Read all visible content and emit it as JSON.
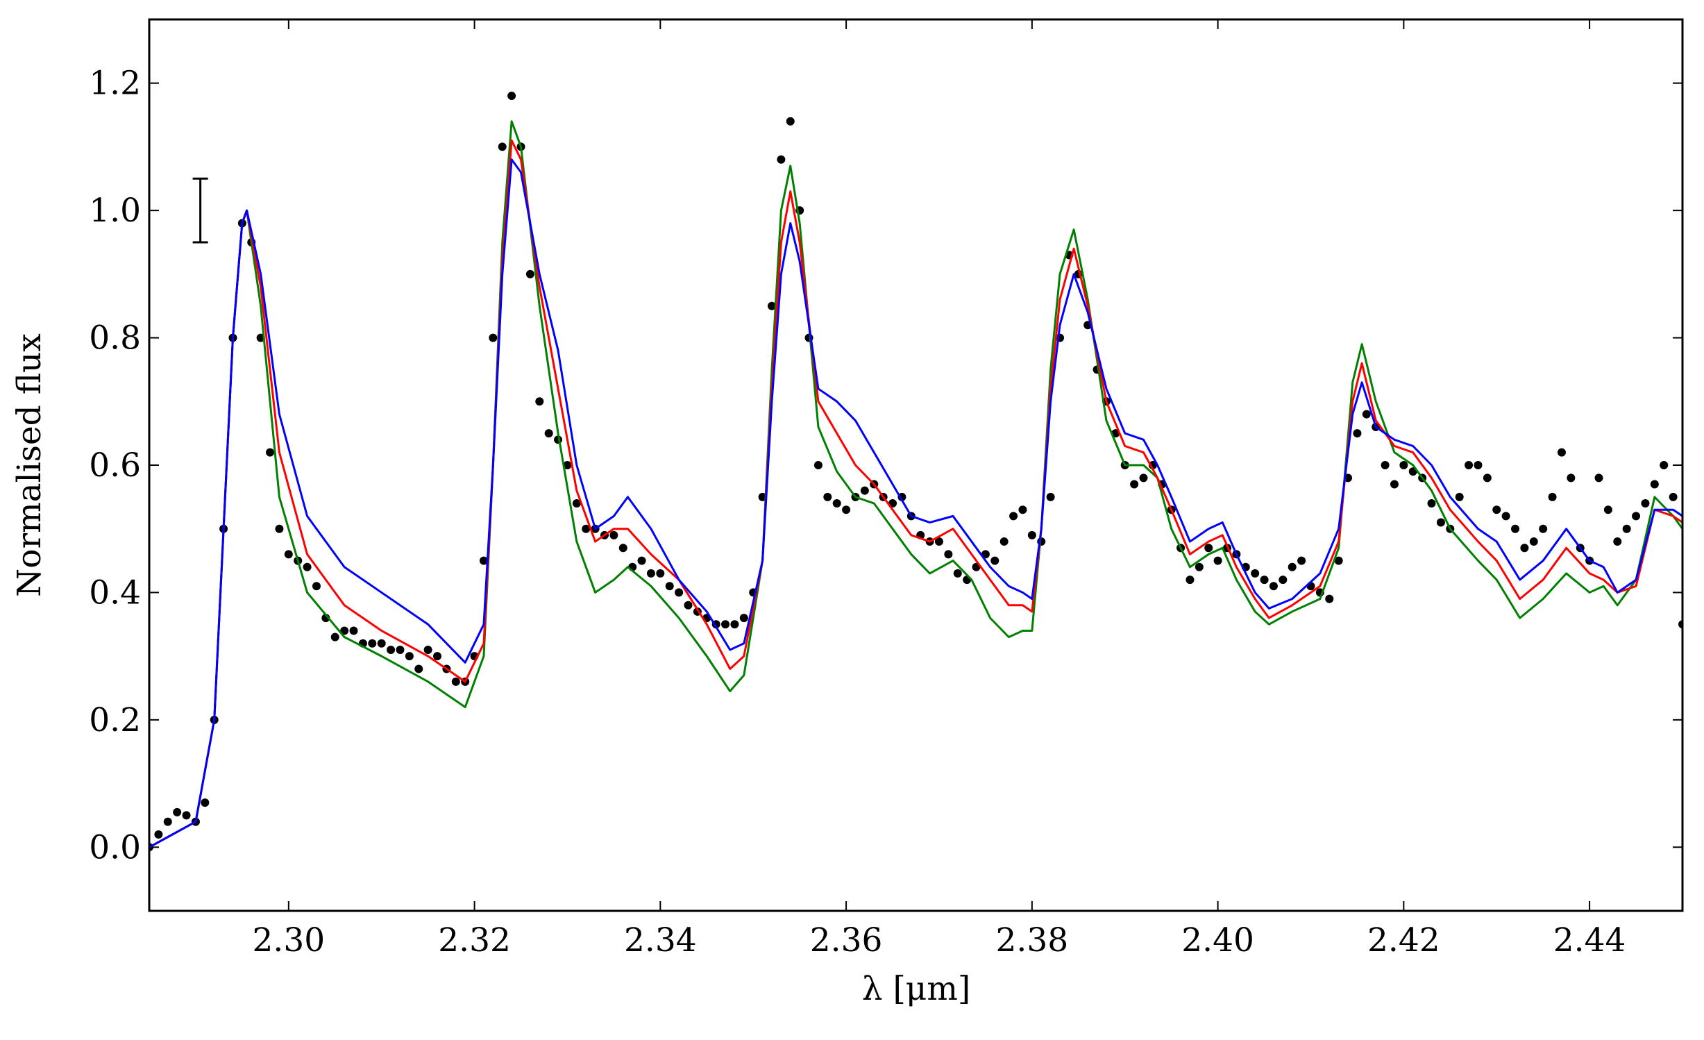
{
  "chart_data": {
    "type": "line",
    "xlabel": "λ [μm]",
    "ylabel": "Normalised flux",
    "xlim": [
      2.285,
      2.45
    ],
    "ylim": [
      -0.1,
      1.3
    ],
    "xticks": [
      {
        "value": 2.3,
        "label": "2.30"
      },
      {
        "value": 2.32,
        "label": "2.32"
      },
      {
        "value": 2.34,
        "label": "2.34"
      },
      {
        "value": 2.36,
        "label": "2.36"
      },
      {
        "value": 2.38,
        "label": "2.38"
      },
      {
        "value": 2.4,
        "label": "2.40"
      },
      {
        "value": 2.42,
        "label": "2.42"
      },
      {
        "value": 2.44,
        "label": "2.44"
      }
    ],
    "yticks": [
      {
        "value": 0.0,
        "label": "0.0"
      },
      {
        "value": 0.2,
        "label": "0.2"
      },
      {
        "value": 0.4,
        "label": "0.4"
      },
      {
        "value": 0.6,
        "label": "0.6"
      },
      {
        "value": 0.8,
        "label": "0.8"
      },
      {
        "value": 1.0,
        "label": "1.0"
      },
      {
        "value": 1.2,
        "label": "1.2"
      }
    ],
    "errorbar": {
      "x": 2.2905,
      "y": 1.0,
      "error": 0.05,
      "color": "#000000"
    },
    "series": [
      {
        "color": "#000000",
        "marker": true,
        "x": [
          2.285,
          2.286,
          2.287,
          2.288,
          2.289,
          2.29,
          2.291,
          2.292,
          2.293,
          2.294,
          2.295,
          2.296,
          2.297,
          2.298,
          2.299,
          2.3,
          2.301,
          2.302,
          2.303,
          2.304,
          2.305,
          2.306,
          2.307,
          2.308,
          2.309,
          2.31,
          2.311,
          2.312,
          2.313,
          2.314,
          2.315,
          2.316,
          2.317,
          2.318,
          2.319,
          2.32,
          2.321,
          2.322,
          2.323,
          2.324,
          2.325,
          2.326,
          2.327,
          2.328,
          2.329,
          2.33,
          2.331,
          2.332,
          2.333,
          2.334,
          2.335,
          2.336,
          2.337,
          2.338,
          2.339,
          2.34,
          2.341,
          2.342,
          2.343,
          2.344,
          2.345,
          2.346,
          2.347,
          2.348,
          2.349,
          2.35,
          2.351,
          2.352,
          2.353,
          2.354,
          2.355,
          2.356,
          2.357,
          2.358,
          2.359,
          2.36,
          2.361,
          2.362,
          2.363,
          2.364,
          2.365,
          2.366,
          2.367,
          2.368,
          2.369,
          2.37,
          2.371,
          2.372,
          2.373,
          2.374,
          2.375,
          2.376,
          2.377,
          2.378,
          2.379,
          2.38,
          2.381,
          2.382,
          2.383,
          2.384,
          2.385,
          2.386,
          2.387,
          2.388,
          2.389,
          2.39,
          2.391,
          2.392,
          2.393,
          2.394,
          2.395,
          2.396,
          2.397,
          2.398,
          2.399,
          2.4,
          2.401,
          2.402,
          2.403,
          2.404,
          2.405,
          2.406,
          2.407,
          2.408,
          2.409,
          2.41,
          2.411,
          2.412,
          2.413,
          2.414,
          2.415,
          2.416,
          2.417,
          2.418,
          2.419,
          2.42,
          2.421,
          2.422,
          2.423,
          2.424,
          2.425,
          2.426,
          2.427,
          2.428,
          2.429,
          2.43,
          2.431,
          2.432,
          2.433,
          2.434,
          2.435,
          2.436,
          2.437,
          2.438,
          2.439,
          2.44,
          2.441,
          2.442,
          2.443,
          2.444,
          2.445,
          2.446,
          2.447,
          2.448,
          2.449,
          2.45
        ],
        "values": [
          0.0,
          0.02,
          0.04,
          0.055,
          0.05,
          0.04,
          0.07,
          0.2,
          0.5,
          0.8,
          0.98,
          0.95,
          0.8,
          0.62,
          0.5,
          0.46,
          0.45,
          0.44,
          0.41,
          0.36,
          0.33,
          0.34,
          0.34,
          0.32,
          0.32,
          0.32,
          0.31,
          0.31,
          0.3,
          0.28,
          0.31,
          0.3,
          0.28,
          0.26,
          0.26,
          0.3,
          0.45,
          0.8,
          1.1,
          1.18,
          1.1,
          0.9,
          0.7,
          0.65,
          0.64,
          0.6,
          0.54,
          0.5,
          0.5,
          0.49,
          0.49,
          0.47,
          0.44,
          0.45,
          0.43,
          0.43,
          0.41,
          0.4,
          0.38,
          0.37,
          0.36,
          0.35,
          0.35,
          0.35,
          0.36,
          0.4,
          0.55,
          0.85,
          1.08,
          1.14,
          1.0,
          0.8,
          0.6,
          0.55,
          0.54,
          0.53,
          0.55,
          0.56,
          0.57,
          0.55,
          0.54,
          0.55,
          0.52,
          0.49,
          0.48,
          0.48,
          0.46,
          0.43,
          0.42,
          0.44,
          0.46,
          0.45,
          0.48,
          0.52,
          0.53,
          0.49,
          0.48,
          0.55,
          0.8,
          0.93,
          0.9,
          0.82,
          0.75,
          0.7,
          0.65,
          0.6,
          0.57,
          0.58,
          0.6,
          0.57,
          0.53,
          0.47,
          0.42,
          0.44,
          0.47,
          0.45,
          0.47,
          0.46,
          0.44,
          0.43,
          0.42,
          0.41,
          0.42,
          0.44,
          0.45,
          0.41,
          0.4,
          0.39,
          0.45,
          0.58,
          0.65,
          0.68,
          0.66,
          0.6,
          0.57,
          0.6,
          0.59,
          0.58,
          0.54,
          0.51,
          0.5,
          0.55,
          0.6,
          0.6,
          0.58,
          0.53,
          0.52,
          0.5,
          0.47,
          0.48,
          0.5,
          0.55,
          0.62,
          0.58,
          0.47,
          0.45,
          0.58,
          0.53,
          0.48,
          0.5,
          0.52,
          0.54,
          0.57,
          0.6,
          0.55,
          0.35
        ]
      },
      {
        "color": "#008000",
        "marker": false,
        "x": [
          2.285,
          2.29,
          2.292,
          2.293,
          2.294,
          2.295,
          2.2955,
          2.297,
          2.299,
          2.302,
          2.306,
          2.31,
          2.315,
          2.319,
          2.321,
          2.322,
          2.323,
          2.324,
          2.325,
          2.327,
          2.329,
          2.331,
          2.333,
          2.335,
          2.3365,
          2.339,
          2.342,
          2.345,
          2.3475,
          2.349,
          2.351,
          2.352,
          2.353,
          2.354,
          2.355,
          2.357,
          2.359,
          2.361,
          2.363,
          2.365,
          2.367,
          2.369,
          2.3715,
          2.3735,
          2.3755,
          2.3775,
          2.379,
          2.38,
          2.381,
          2.382,
          2.383,
          2.3845,
          2.386,
          2.388,
          2.39,
          2.392,
          2.3935,
          2.395,
          2.397,
          2.399,
          2.4005,
          2.402,
          2.404,
          2.4055,
          2.408,
          2.411,
          2.413,
          2.4145,
          2.4155,
          2.417,
          2.419,
          2.421,
          2.423,
          2.425,
          2.428,
          2.43,
          2.4325,
          2.435,
          2.4375,
          2.44,
          2.4415,
          2.443,
          2.445,
          2.447,
          2.449,
          2.45
        ],
        "values": [
          0.0,
          0.04,
          0.2,
          0.5,
          0.8,
          0.98,
          1.0,
          0.85,
          0.55,
          0.4,
          0.33,
          0.3,
          0.26,
          0.22,
          0.3,
          0.6,
          0.95,
          1.14,
          1.1,
          0.85,
          0.65,
          0.48,
          0.4,
          0.42,
          0.44,
          0.41,
          0.36,
          0.3,
          0.245,
          0.27,
          0.45,
          0.75,
          1.0,
          1.07,
          0.98,
          0.66,
          0.59,
          0.55,
          0.54,
          0.5,
          0.46,
          0.43,
          0.45,
          0.42,
          0.36,
          0.33,
          0.34,
          0.34,
          0.5,
          0.75,
          0.9,
          0.97,
          0.86,
          0.67,
          0.6,
          0.6,
          0.58,
          0.5,
          0.44,
          0.46,
          0.47,
          0.42,
          0.37,
          0.35,
          0.37,
          0.39,
          0.47,
          0.73,
          0.79,
          0.7,
          0.62,
          0.6,
          0.56,
          0.5,
          0.45,
          0.42,
          0.36,
          0.39,
          0.43,
          0.4,
          0.41,
          0.38,
          0.42,
          0.55,
          0.52,
          0.5
        ]
      },
      {
        "color": "#ff0000",
        "marker": false,
        "x": [
          2.285,
          2.29,
          2.292,
          2.293,
          2.294,
          2.295,
          2.2955,
          2.297,
          2.299,
          2.302,
          2.306,
          2.31,
          2.315,
          2.319,
          2.321,
          2.322,
          2.323,
          2.324,
          2.325,
          2.327,
          2.329,
          2.331,
          2.333,
          2.335,
          2.3365,
          2.339,
          2.342,
          2.345,
          2.3475,
          2.349,
          2.351,
          2.352,
          2.353,
          2.354,
          2.355,
          2.357,
          2.359,
          2.361,
          2.363,
          2.365,
          2.367,
          2.369,
          2.3715,
          2.3735,
          2.3755,
          2.3775,
          2.379,
          2.38,
          2.381,
          2.382,
          2.383,
          2.3845,
          2.386,
          2.388,
          2.39,
          2.392,
          2.3935,
          2.395,
          2.397,
          2.399,
          2.4005,
          2.402,
          2.404,
          2.4055,
          2.408,
          2.411,
          2.413,
          2.4145,
          2.4155,
          2.417,
          2.419,
          2.421,
          2.423,
          2.425,
          2.428,
          2.43,
          2.4325,
          2.435,
          2.4375,
          2.44,
          2.4415,
          2.443,
          2.445,
          2.447,
          2.449,
          2.45
        ],
        "values": [
          0.0,
          0.04,
          0.2,
          0.5,
          0.8,
          0.98,
          1.0,
          0.88,
          0.62,
          0.46,
          0.38,
          0.34,
          0.3,
          0.26,
          0.32,
          0.6,
          0.92,
          1.11,
          1.08,
          0.88,
          0.72,
          0.56,
          0.48,
          0.5,
          0.5,
          0.46,
          0.42,
          0.35,
          0.28,
          0.3,
          0.45,
          0.72,
          0.95,
          1.03,
          0.95,
          0.7,
          0.65,
          0.6,
          0.57,
          0.53,
          0.49,
          0.48,
          0.5,
          0.46,
          0.42,
          0.38,
          0.38,
          0.37,
          0.5,
          0.72,
          0.86,
          0.94,
          0.85,
          0.7,
          0.63,
          0.62,
          0.58,
          0.53,
          0.46,
          0.48,
          0.49,
          0.44,
          0.39,
          0.36,
          0.38,
          0.41,
          0.48,
          0.7,
          0.76,
          0.67,
          0.63,
          0.62,
          0.58,
          0.53,
          0.48,
          0.45,
          0.39,
          0.42,
          0.47,
          0.43,
          0.42,
          0.4,
          0.41,
          0.53,
          0.52,
          0.51
        ]
      },
      {
        "color": "#0000ff",
        "marker": false,
        "x": [
          2.285,
          2.29,
          2.292,
          2.293,
          2.294,
          2.295,
          2.2955,
          2.297,
          2.299,
          2.302,
          2.306,
          2.31,
          2.315,
          2.319,
          2.321,
          2.322,
          2.323,
          2.324,
          2.325,
          2.327,
          2.329,
          2.331,
          2.333,
          2.335,
          2.3365,
          2.339,
          2.342,
          2.345,
          2.3475,
          2.349,
          2.351,
          2.352,
          2.353,
          2.354,
          2.355,
          2.357,
          2.359,
          2.361,
          2.363,
          2.365,
          2.367,
          2.369,
          2.3715,
          2.3735,
          2.3755,
          2.3775,
          2.379,
          2.38,
          2.381,
          2.382,
          2.383,
          2.3845,
          2.386,
          2.388,
          2.39,
          2.392,
          2.3935,
          2.395,
          2.397,
          2.399,
          2.4005,
          2.402,
          2.404,
          2.4055,
          2.408,
          2.411,
          2.413,
          2.4145,
          2.4155,
          2.417,
          2.419,
          2.421,
          2.423,
          2.425,
          2.428,
          2.43,
          2.4325,
          2.435,
          2.4375,
          2.44,
          2.4415,
          2.443,
          2.445,
          2.447,
          2.449,
          2.45
        ],
        "values": [
          0.0,
          0.04,
          0.2,
          0.5,
          0.8,
          0.98,
          1.0,
          0.9,
          0.68,
          0.52,
          0.44,
          0.4,
          0.35,
          0.29,
          0.35,
          0.6,
          0.9,
          1.08,
          1.06,
          0.9,
          0.78,
          0.6,
          0.5,
          0.52,
          0.55,
          0.5,
          0.42,
          0.37,
          0.31,
          0.32,
          0.45,
          0.7,
          0.9,
          0.98,
          0.92,
          0.72,
          0.7,
          0.67,
          0.62,
          0.57,
          0.52,
          0.51,
          0.52,
          0.48,
          0.44,
          0.41,
          0.4,
          0.39,
          0.5,
          0.7,
          0.82,
          0.9,
          0.84,
          0.72,
          0.65,
          0.64,
          0.6,
          0.55,
          0.48,
          0.5,
          0.51,
          0.46,
          0.4,
          0.375,
          0.39,
          0.43,
          0.5,
          0.68,
          0.73,
          0.66,
          0.64,
          0.63,
          0.6,
          0.55,
          0.5,
          0.48,
          0.42,
          0.45,
          0.5,
          0.45,
          0.44,
          0.4,
          0.42,
          0.53,
          0.53,
          0.52
        ]
      }
    ]
  }
}
